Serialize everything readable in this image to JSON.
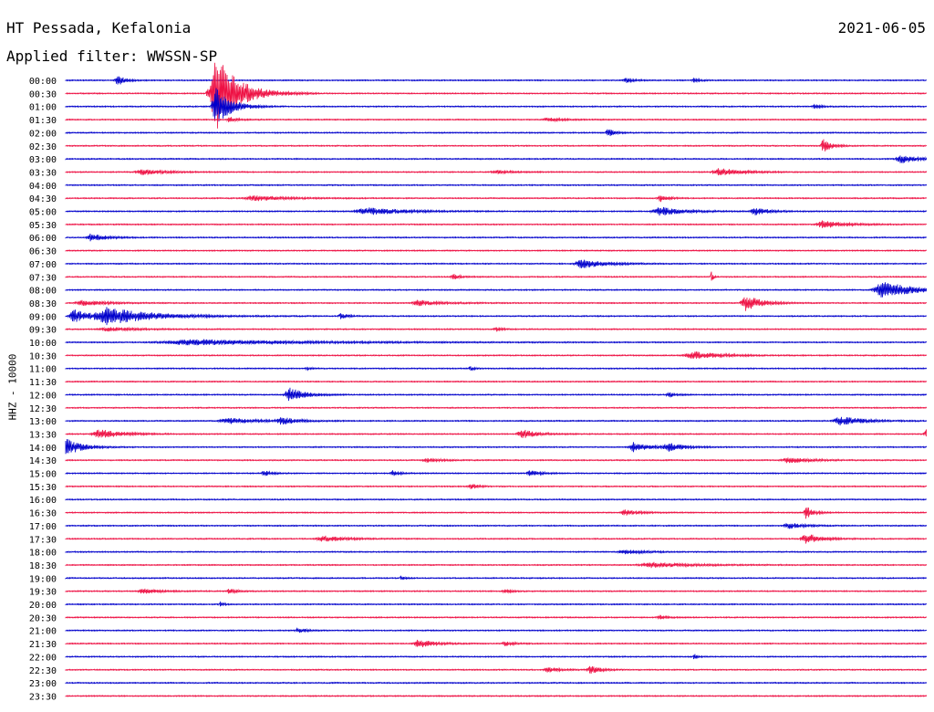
{
  "header": {
    "station": "HT Pessada, Kefalonia",
    "date": "2021-06-05",
    "filter": "Applied filter: WWSSN-SP"
  },
  "chart_data": {
    "type": "line",
    "title": "HT Pessada, Kefalonia",
    "subtitle": "Applied filter: WWSSN-SP",
    "ylabel": "HHZ - 10000",
    "xlabel": "",
    "grid": false,
    "row_colors": [
      "#0000cc",
      "#ee1144"
    ],
    "rows": [
      {
        "label": "00:00",
        "events": [
          {
            "pos": 0.06,
            "amp": 6,
            "width": 0.01
          },
          {
            "pos": 0.65,
            "amp": 3,
            "width": 0.01
          },
          {
            "pos": 0.73,
            "amp": 2,
            "width": 0.008
          }
        ]
      },
      {
        "label": "00:30",
        "events": [
          {
            "pos": 0.175,
            "amp": 42,
            "width": 0.03
          }
        ]
      },
      {
        "label": "01:00",
        "events": [
          {
            "pos": 0.175,
            "amp": 20,
            "width": 0.02
          },
          {
            "pos": 0.87,
            "amp": 2,
            "width": 0.01
          }
        ]
      },
      {
        "label": "01:30",
        "events": [
          {
            "pos": 0.19,
            "amp": 3,
            "width": 0.01
          },
          {
            "pos": 0.56,
            "amp": 2,
            "width": 0.02
          }
        ]
      },
      {
        "label": "02:00",
        "events": [
          {
            "pos": 0.63,
            "amp": 4,
            "width": 0.01
          }
        ]
      },
      {
        "label": "02:30",
        "events": [
          {
            "pos": 0.88,
            "amp": 8,
            "width": 0.01
          }
        ]
      },
      {
        "label": "03:00",
        "events": [
          {
            "pos": 0.97,
            "amp": 5,
            "width": 0.02
          }
        ]
      },
      {
        "label": "03:30",
        "events": [
          {
            "pos": 0.09,
            "amp": 3,
            "width": 0.03
          },
          {
            "pos": 0.5,
            "amp": 2,
            "width": 0.02
          },
          {
            "pos": 0.76,
            "amp": 4,
            "width": 0.03
          }
        ]
      },
      {
        "label": "04:00",
        "events": []
      },
      {
        "label": "04:30",
        "events": [
          {
            "pos": 0.22,
            "amp": 3,
            "width": 0.04
          },
          {
            "pos": 0.69,
            "amp": 4,
            "width": 0.01
          }
        ]
      },
      {
        "label": "05:00",
        "events": [
          {
            "pos": 0.35,
            "amp": 4,
            "width": 0.05
          },
          {
            "pos": 0.69,
            "amp": 5,
            "width": 0.03
          },
          {
            "pos": 0.8,
            "amp": 4,
            "width": 0.02
          }
        ]
      },
      {
        "label": "05:30",
        "events": [
          {
            "pos": 0.88,
            "amp": 4,
            "width": 0.03
          }
        ]
      },
      {
        "label": "06:00",
        "events": [
          {
            "pos": 0.03,
            "amp": 4,
            "width": 0.02
          }
        ]
      },
      {
        "label": "06:30",
        "events": []
      },
      {
        "label": "07:00",
        "events": [
          {
            "pos": 0.6,
            "amp": 5,
            "width": 0.03
          }
        ]
      },
      {
        "label": "07:30",
        "events": [
          {
            "pos": 0.45,
            "amp": 3,
            "width": 0.01
          },
          {
            "pos": 0.75,
            "amp": 7,
            "width": 0.002
          }
        ]
      },
      {
        "label": "08:00",
        "events": [
          {
            "pos": 0.95,
            "amp": 9,
            "width": 0.04
          }
        ]
      },
      {
        "label": "08:30",
        "events": [
          {
            "pos": 0.02,
            "amp": 3,
            "width": 0.03
          },
          {
            "pos": 0.41,
            "amp": 3,
            "width": 0.03
          },
          {
            "pos": 0.79,
            "amp": 9,
            "width": 0.02
          }
        ]
      },
      {
        "label": "09:00",
        "events": [
          {
            "pos": 0.01,
            "amp": 7,
            "width": 0.02
          },
          {
            "pos": 0.05,
            "amp": 9,
            "width": 0.06
          },
          {
            "pos": 0.32,
            "amp": 3,
            "width": 0.01
          }
        ]
      },
      {
        "label": "09:30",
        "events": [
          {
            "pos": 0.05,
            "amp": 2,
            "width": 0.04
          },
          {
            "pos": 0.5,
            "amp": 2,
            "width": 0.01
          }
        ]
      },
      {
        "label": "10:00",
        "events": [
          {
            "pos": 0.15,
            "amp": 3,
            "width": 0.15
          }
        ]
      },
      {
        "label": "10:30",
        "events": [
          {
            "pos": 0.73,
            "amp": 4,
            "width": 0.04
          }
        ]
      },
      {
        "label": "11:00",
        "events": [
          {
            "pos": 0.28,
            "amp": 2,
            "width": 0.005
          },
          {
            "pos": 0.47,
            "amp": 3,
            "width": 0.005
          }
        ]
      },
      {
        "label": "11:30",
        "events": []
      },
      {
        "label": "12:00",
        "events": [
          {
            "pos": 0.26,
            "amp": 8,
            "width": 0.02
          },
          {
            "pos": 0.7,
            "amp": 3,
            "width": 0.01
          }
        ]
      },
      {
        "label": "12:30",
        "events": []
      },
      {
        "label": "13:00",
        "events": [
          {
            "pos": 0.19,
            "amp": 3,
            "width": 0.04
          },
          {
            "pos": 0.25,
            "amp": 4,
            "width": 0.02
          },
          {
            "pos": 0.9,
            "amp": 5,
            "width": 0.03
          }
        ]
      },
      {
        "label": "13:30",
        "events": [
          {
            "pos": 0.04,
            "amp": 5,
            "width": 0.03
          },
          {
            "pos": 0.53,
            "amp": 5,
            "width": 0.02
          },
          {
            "pos": 1.0,
            "amp": 6,
            "width": 0.01
          }
        ]
      },
      {
        "label": "14:00",
        "events": [
          {
            "pos": 0.0,
            "amp": 10,
            "width": 0.02
          },
          {
            "pos": 0.66,
            "amp": 5,
            "width": 0.02
          },
          {
            "pos": 0.7,
            "amp": 5,
            "width": 0.02
          }
        ]
      },
      {
        "label": "14:30",
        "events": [
          {
            "pos": 0.42,
            "amp": 2,
            "width": 0.02
          },
          {
            "pos": 0.84,
            "amp": 3,
            "width": 0.03
          }
        ]
      },
      {
        "label": "15:00",
        "events": [
          {
            "pos": 0.23,
            "amp": 3,
            "width": 0.01
          },
          {
            "pos": 0.38,
            "amp": 3,
            "width": 0.01
          },
          {
            "pos": 0.54,
            "amp": 3,
            "width": 0.015
          }
        ]
      },
      {
        "label": "15:30",
        "events": [
          {
            "pos": 0.47,
            "amp": 3,
            "width": 0.01
          }
        ]
      },
      {
        "label": "16:00",
        "events": []
      },
      {
        "label": "16:30",
        "events": [
          {
            "pos": 0.65,
            "amp": 3,
            "width": 0.02
          },
          {
            "pos": 0.86,
            "amp": 7,
            "width": 0.01
          }
        ]
      },
      {
        "label": "17:00",
        "events": [
          {
            "pos": 0.84,
            "amp": 3,
            "width": 0.02
          }
        ]
      },
      {
        "label": "17:30",
        "events": [
          {
            "pos": 0.3,
            "amp": 3,
            "width": 0.03
          },
          {
            "pos": 0.86,
            "amp": 6,
            "width": 0.02
          }
        ]
      },
      {
        "label": "18:00",
        "events": [
          {
            "pos": 0.65,
            "amp": 2,
            "width": 0.03
          }
        ]
      },
      {
        "label": "18:30",
        "events": [
          {
            "pos": 0.68,
            "amp": 3,
            "width": 0.05
          }
        ]
      },
      {
        "label": "19:00",
        "events": [
          {
            "pos": 0.39,
            "amp": 3,
            "width": 0.005
          }
        ]
      },
      {
        "label": "19:30",
        "events": [
          {
            "pos": 0.09,
            "amp": 3,
            "width": 0.02
          },
          {
            "pos": 0.19,
            "amp": 3,
            "width": 0.01
          },
          {
            "pos": 0.51,
            "amp": 2,
            "width": 0.01
          }
        ]
      },
      {
        "label": "20:00",
        "events": [
          {
            "pos": 0.18,
            "amp": 2,
            "width": 0.005
          }
        ]
      },
      {
        "label": "20:30",
        "events": [
          {
            "pos": 0.69,
            "amp": 3,
            "width": 0.01
          }
        ]
      },
      {
        "label": "21:00",
        "events": [
          {
            "pos": 0.27,
            "amp": 3,
            "width": 0.01
          }
        ]
      },
      {
        "label": "21:30",
        "events": [
          {
            "pos": 0.41,
            "amp": 5,
            "width": 0.02
          },
          {
            "pos": 0.51,
            "amp": 3,
            "width": 0.01
          }
        ]
      },
      {
        "label": "22:00",
        "events": [
          {
            "pos": 0.73,
            "amp": 3,
            "width": 0.005
          }
        ]
      },
      {
        "label": "22:30",
        "events": [
          {
            "pos": 0.56,
            "amp": 3,
            "width": 0.015
          },
          {
            "pos": 0.61,
            "amp": 4,
            "width": 0.015
          }
        ]
      },
      {
        "label": "23:00",
        "events": []
      },
      {
        "label": "23:30",
        "events": []
      }
    ]
  }
}
